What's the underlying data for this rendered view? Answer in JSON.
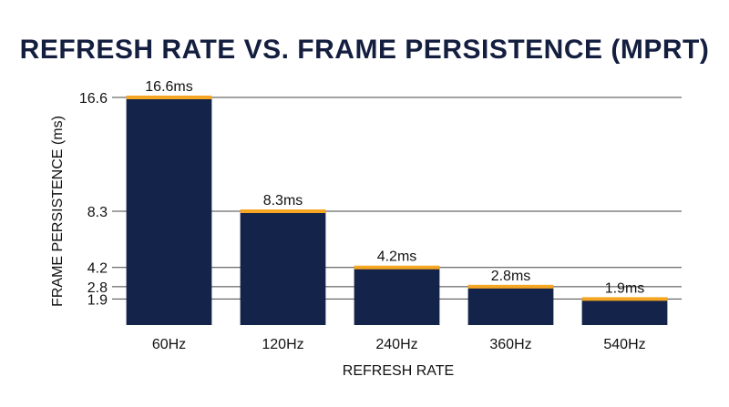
{
  "chart_data": {
    "type": "bar",
    "title": "REFRESH RATE VS. FRAME PERSISTENCE (MPRT)",
    "xlabel": "REFRESH RATE",
    "ylabel": "FRAME PERSISTENCE (ms)",
    "categories": [
      "60Hz",
      "120Hz",
      "240Hz",
      "360Hz",
      "540Hz"
    ],
    "values": [
      16.6,
      8.3,
      4.2,
      2.8,
      1.9
    ],
    "data_labels": [
      "16.6ms",
      "8.3ms",
      "4.2ms",
      "2.8ms",
      "1.9ms"
    ],
    "y_ticks": [
      1.9,
      2.8,
      4.2,
      8.3,
      16.6
    ],
    "y_tick_labels": [
      "1.9",
      "2.8",
      "4.2",
      "8.3",
      "16.6"
    ],
    "ylim": [
      0,
      16.6
    ],
    "grid": true,
    "colors": {
      "bar": "#14234a",
      "bar_top": "#f5a623",
      "grid": "#444444",
      "title": "#141f40"
    }
  }
}
